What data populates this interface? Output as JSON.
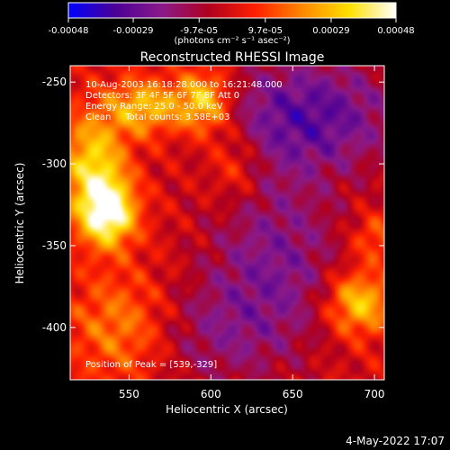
{
  "colorbar": {
    "tick_labels": [
      "-0.00048",
      "-0.00029",
      "-9.7e-05",
      "9.7e-05",
      "0.00029",
      "0.00048"
    ],
    "tick_values": [
      -0.00048,
      -0.00029,
      -9.7e-05,
      9.7e-05,
      0.00029,
      0.00048
    ],
    "range": [
      -0.00048,
      0.00048
    ],
    "units_label": "(photons cm⁻² s⁻¹ asec⁻²)",
    "colors": [
      "#0000ff",
      "#4b0096",
      "#8a1a8a",
      "#b0001e",
      "#ff2000",
      "#ff8800",
      "#ffe000",
      "#ffffff"
    ]
  },
  "chart_data": {
    "type": "heatmap",
    "title": "Reconstructed RHESSI Image",
    "xlabel": "Heliocentric X (arcsec)",
    "ylabel": "Heliocentric Y (arcsec)",
    "xlim": [
      514,
      706
    ],
    "ylim": [
      -432,
      -240
    ],
    "x_ticks": [
      550,
      600,
      650,
      700
    ],
    "y_ticks": [
      -250,
      -300,
      -350,
      -400
    ],
    "annotations": {
      "time_range": "10-Aug-2003 16:18:28.000 to 16:21:48.000",
      "detectors": "Detectors: 3F 4F 5F 6F 7F 8F  Att 0",
      "energy_range": "Energy Range: 25.0 - 50.0 keV",
      "method": "Clean     Total counts: 3.58E+03",
      "peak": "Position of Peak = [539,-329]"
    },
    "peak_position": [
      539,
      -329
    ],
    "sources": [
      {
        "x": 537,
        "y": -330,
        "sx": 12,
        "sy": 14,
        "amp": 0.00048
      },
      {
        "x": 528,
        "y": -300,
        "sx": 14,
        "sy": 22,
        "amp": 0.00033
      },
      {
        "x": 560,
        "y": -265,
        "sx": 16,
        "sy": 12,
        "amp": 0.0003
      },
      {
        "x": 596,
        "y": -262,
        "sx": 12,
        "sy": 14,
        "amp": 0.00036
      },
      {
        "x": 545,
        "y": -400,
        "sx": 22,
        "sy": 24,
        "amp": 0.0002
      },
      {
        "x": 615,
        "y": -300,
        "sx": 12,
        "sy": 16,
        "amp": 0.00016
      },
      {
        "x": 690,
        "y": -385,
        "sx": 14,
        "sy": 14,
        "amp": 0.00034
      },
      {
        "x": 700,
        "y": -345,
        "sx": 10,
        "sy": 10,
        "amp": 0.00016
      },
      {
        "x": 660,
        "y": -270,
        "sx": 40,
        "sy": 25,
        "amp": -0.0003
      },
      {
        "x": 640,
        "y": -360,
        "sx": 30,
        "sy": 40,
        "amp": -0.00022
      },
      {
        "x": 600,
        "y": -405,
        "sx": 30,
        "sy": 25,
        "amp": -0.00014
      }
    ]
  },
  "footer": {
    "date": "4-May-2022 17:07"
  }
}
